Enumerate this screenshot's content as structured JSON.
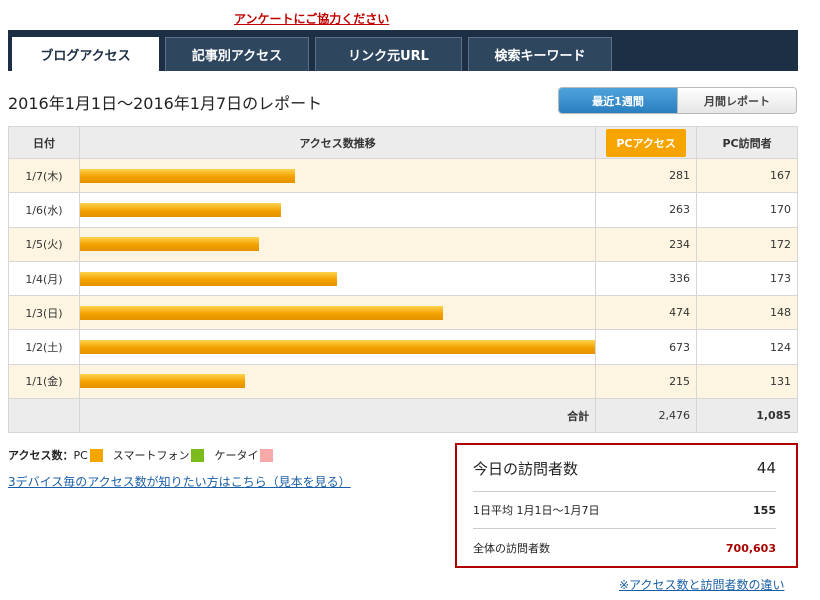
{
  "survey_link": "アンケートにご協力ください",
  "tabs": [
    {
      "label": "ブログアクセス",
      "active": true
    },
    {
      "label": "記事別アクセス",
      "active": false
    },
    {
      "label": "リンク元URL",
      "active": false
    },
    {
      "label": "検索キーワード",
      "active": false
    }
  ],
  "report_title": "2016年1月1日～2016年1月7日のレポート",
  "range_toggle": {
    "week_label": "最近1週間",
    "month_label": "月間レポート",
    "selected": "最近1週間"
  },
  "table": {
    "headers": {
      "date": "日付",
      "trend": "アクセス数推移",
      "pc_access": "PCアクセス",
      "pc_visitors": "PC訪問者"
    },
    "rows": [
      {
        "date": "1/7(木)",
        "pc_access": "281",
        "pc_visitors": "167"
      },
      {
        "date": "1/6(水)",
        "pc_access": "263",
        "pc_visitors": "170"
      },
      {
        "date": "1/5(火)",
        "pc_access": "234",
        "pc_visitors": "172"
      },
      {
        "date": "1/4(月)",
        "pc_access": "336",
        "pc_visitors": "173"
      },
      {
        "date": "1/3(日)",
        "pc_access": "474",
        "pc_visitors": "148"
      },
      {
        "date": "1/2(土)",
        "pc_access": "673",
        "pc_visitors": "124"
      },
      {
        "date": "1/1(金)",
        "pc_access": "215",
        "pc_visitors": "131"
      }
    ],
    "total_label": "合計",
    "total_pc_access": "2,476",
    "total_pc_visitors": "1,085"
  },
  "legend": {
    "title": "アクセス数：",
    "pc": "PC",
    "smartphone": "スマートフォン",
    "keitai": "ケータイ",
    "colors": {
      "pc": "#f5a400",
      "smartphone": "#7cbb1c",
      "keitai": "#f7a8a8"
    }
  },
  "device_link": "3デバイス毎のアクセス数が知りたい方はこちら（見本を見る）",
  "visitors": {
    "today_label": "今日の訪問者数",
    "today_value": "44",
    "average_label": "1日平均 1月1日～1月7日",
    "average_value": "155",
    "total_label": "全体の訪問者数",
    "total_value": "700,603"
  },
  "diff_link": "※アクセス数と訪問者数の違い",
  "colors": {
    "tab_bar": "#1c2f45",
    "accent_orange": "#f5a400",
    "active_blue": "#2a7fc0",
    "box_border": "#b10000",
    "link_blue": "#1a5fa5"
  }
}
